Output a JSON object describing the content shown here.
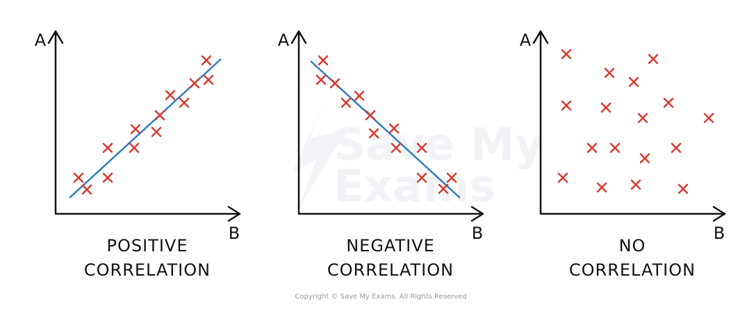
{
  "watermark": [
    "Save My",
    "Exams"
  ],
  "panels": [
    {
      "y_label": "A",
      "x_label": "B",
      "caption": [
        "POSITIVE",
        "CORRELATION"
      ]
    },
    {
      "y_label": "A",
      "x_label": "B",
      "caption": [
        "NEGATIVE",
        "CORRELATION"
      ]
    },
    {
      "y_label": "A",
      "x_label": "B",
      "caption": [
        "NO",
        "CORRELATION"
      ]
    }
  ],
  "copyright": "Copyright © Save My Exams. All Rights Reserved"
}
